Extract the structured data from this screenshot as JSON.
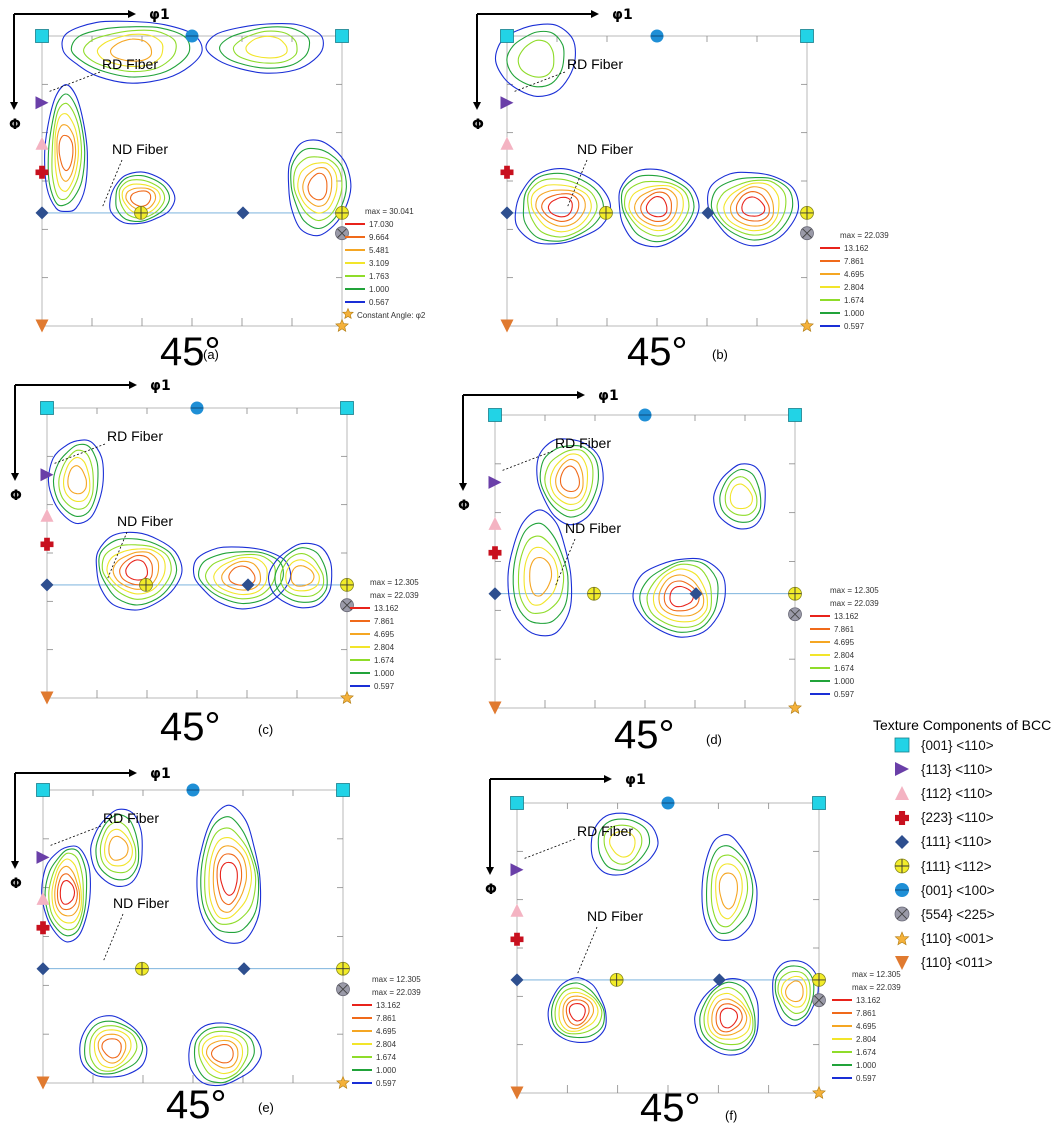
{
  "chart_data": [
    {
      "type": "contour",
      "panel": "(a)",
      "angle_label": "45°",
      "x_axis_label": "φ1",
      "y_axis_label": "Φ",
      "annotations": [
        "RD Fiber",
        "ND Fiber"
      ],
      "legend": {
        "max_labels": [
          "max = 30.041"
        ],
        "levels": [
          "17.030",
          "9.664",
          "5.481",
          "3.109",
          "1.763",
          "1.000",
          "0.567"
        ],
        "footer": "Constant Angle: φ2"
      }
    },
    {
      "type": "contour",
      "panel": "(b)",
      "angle_label": "45°",
      "x_axis_label": "φ1",
      "y_axis_label": "Φ",
      "annotations": [
        "RD Fiber",
        "ND Fiber"
      ],
      "legend": {
        "max_labels": [
          "max = 22.039"
        ],
        "levels": [
          "13.162",
          "7.861",
          "4.695",
          "2.804",
          "1.674",
          "1.000",
          "0.597"
        ]
      }
    },
    {
      "type": "contour",
      "panel": "(c)",
      "angle_label": "45°",
      "x_axis_label": "φ1",
      "y_axis_label": "Φ",
      "annotations": [
        "RD Fiber",
        "ND Fiber"
      ],
      "legend": {
        "max_labels": [
          "max = 12.305",
          "max = 22.039"
        ],
        "levels": [
          "13.162",
          "7.861",
          "4.695",
          "2.804",
          "1.674",
          "1.000",
          "0.597"
        ]
      }
    },
    {
      "type": "contour",
      "panel": "(d)",
      "angle_label": "45°",
      "x_axis_label": "φ1",
      "y_axis_label": "Φ",
      "annotations": [
        "RD Fiber",
        "ND Fiber"
      ],
      "legend": {
        "max_labels": [
          "max = 12.305",
          "max = 22.039"
        ],
        "levels": [
          "13.162",
          "7.861",
          "4.695",
          "2.804",
          "1.674",
          "1.000",
          "0.597"
        ]
      }
    },
    {
      "type": "contour",
      "panel": "(e)",
      "angle_label": "45°",
      "x_axis_label": "φ1",
      "y_axis_label": "Φ",
      "annotations": [
        "RD Fiber",
        "ND Fiber"
      ],
      "legend": {
        "max_labels": [
          "max = 12.305",
          "max = 22.039"
        ],
        "levels": [
          "13.162",
          "7.861",
          "4.695",
          "2.804",
          "1.674",
          "1.000",
          "0.597"
        ]
      }
    },
    {
      "type": "contour",
      "panel": "(f)",
      "angle_label": "45°",
      "x_axis_label": "φ1",
      "y_axis_label": "Φ",
      "annotations": [
        "RD Fiber",
        "ND Fiber"
      ],
      "legend": {
        "max_labels": [
          "max = 12.305",
          "max = 22.039"
        ],
        "levels": [
          "13.162",
          "7.861",
          "4.695",
          "2.804",
          "1.674",
          "1.000",
          "0.597"
        ]
      }
    }
  ],
  "level_colors": [
    "#e8231b",
    "#f06a1a",
    "#f5a623",
    "#f2e52a",
    "#8fdc2a",
    "#21a33a",
    "#1a2fd6"
  ],
  "texture_components": {
    "title": "Texture Components of BCC",
    "items": [
      {
        "label": "{001} <110>",
        "icon": "square-icon",
        "color": "#22d3e6"
      },
      {
        "label": "{113} <110>",
        "icon": "triangle-right-icon",
        "color": "#6a3fa8"
      },
      {
        "label": "{112} <110>",
        "icon": "triangle-up-icon",
        "color": "#f4b3c2"
      },
      {
        "label": "{223} <110>",
        "icon": "cross-icon",
        "color": "#c8101e"
      },
      {
        "label": "{111} <110>",
        "icon": "diamond-icon",
        "color": "#2e4f8f"
      },
      {
        "label": "{111} <112>",
        "icon": "circle-plus-icon",
        "color": "#f2ec2a"
      },
      {
        "label": "{001} <100>",
        "icon": "circle-minus-icon",
        "color": "#1f8fd6"
      },
      {
        "label": "{554} <225>",
        "icon": "circle-x-icon",
        "color": "#9a9aa8"
      },
      {
        "label": "{110} <001>",
        "icon": "star-icon",
        "color": "#f4b13a"
      },
      {
        "label": "{110} <011>",
        "icon": "triangle-down-icon",
        "color": "#e07a30"
      }
    ]
  }
}
